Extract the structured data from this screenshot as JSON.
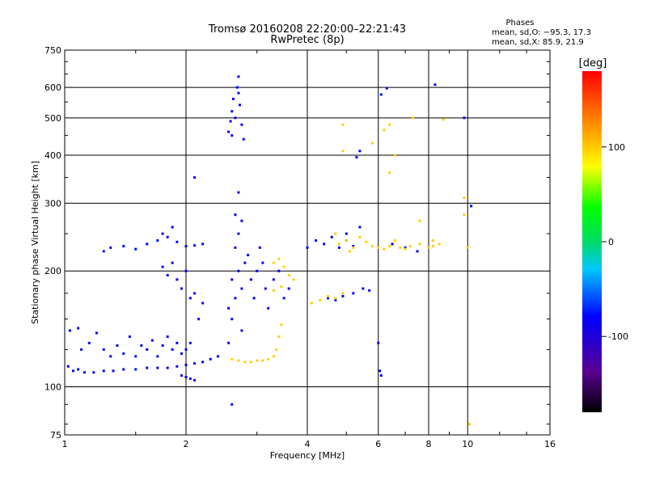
{
  "chart_data": {
    "type": "scatter",
    "title": "Tromsø 20160208 22:20:00–22:21:43",
    "subtitle": "RwPretec (8p)",
    "xlabel": "Frequency [MHz]",
    "ylabel": "Stationary phase Virtual Height [km]",
    "x_scale": "log",
    "y_scale": "log",
    "xlim": [
      1,
      16
    ],
    "ylim": [
      75,
      750
    ],
    "x_ticks": [
      1,
      2,
      4,
      6,
      8,
      10,
      16
    ],
    "x_tick_labels": [
      "1",
      "2",
      "4",
      "6",
      "8",
      "10",
      "16"
    ],
    "y_ticks": [
      75,
      100,
      200,
      300,
      400,
      500,
      600,
      750
    ],
    "y_tick_labels": [
      "75",
      "100",
      "200",
      "300",
      "400",
      "500",
      "600",
      "750"
    ],
    "grid": true,
    "colorbar": {
      "label": "[deg]",
      "range": [
        -180,
        180
      ],
      "ticks": [
        100,
        0,
        -100
      ],
      "tick_labels": [
        "100",
        "0",
        "-100"
      ]
    },
    "annotation": {
      "title": "Phases",
      "line1": "mean, sd,O: −95.3, 17.3",
      "line2": "mean, sd,X:  85.9, 21.9"
    },
    "series": [
      {
        "points": [
          [
            1.02,
            113
          ],
          [
            1.05,
            110
          ],
          [
            1.08,
            111
          ],
          [
            1.12,
            109
          ],
          [
            1.18,
            109
          ],
          [
            1.25,
            110
          ],
          [
            1.32,
            110
          ],
          [
            1.4,
            111
          ],
          [
            1.5,
            111
          ],
          [
            1.6,
            112
          ],
          [
            1.7,
            112
          ],
          [
            1.8,
            112
          ],
          [
            1.9,
            113
          ],
          [
            2.0,
            114
          ],
          [
            2.1,
            115
          ],
          [
            2.2,
            116
          ],
          [
            2.3,
            118
          ],
          [
            2.4,
            120
          ],
          [
            1.03,
            140
          ],
          [
            1.08,
            142
          ],
          [
            1.1,
            125
          ],
          [
            1.15,
            130
          ],
          [
            1.2,
            138
          ],
          [
            1.25,
            125
          ],
          [
            1.3,
            120
          ],
          [
            1.35,
            128
          ],
          [
            1.4,
            122
          ],
          [
            1.45,
            135
          ],
          [
            1.5,
            120
          ],
          [
            1.55,
            128
          ],
          [
            1.6,
            125
          ],
          [
            1.65,
            132
          ],
          [
            1.7,
            120
          ],
          [
            1.75,
            128
          ],
          [
            1.8,
            135
          ],
          [
            1.85,
            125
          ],
          [
            1.9,
            130
          ],
          [
            1.95,
            122
          ],
          [
            2.0,
            125
          ],
          [
            2.05,
            130
          ],
          [
            1.25,
            225
          ],
          [
            1.3,
            230
          ],
          [
            1.4,
            232
          ],
          [
            1.5,
            228
          ],
          [
            1.6,
            235
          ],
          [
            1.7,
            240
          ],
          [
            1.75,
            250
          ],
          [
            1.8,
            245
          ],
          [
            1.85,
            260
          ],
          [
            1.9,
            238
          ],
          [
            2.0,
            232
          ],
          [
            2.1,
            233
          ],
          [
            2.2,
            235
          ],
          [
            1.75,
            205
          ],
          [
            1.8,
            195
          ],
          [
            1.85,
            210
          ],
          [
            1.9,
            190
          ],
          [
            1.95,
            180
          ],
          [
            2.0,
            200
          ],
          [
            2.05,
            170
          ],
          [
            2.1,
            175
          ],
          [
            2.15,
            150
          ],
          [
            2.2,
            165
          ],
          [
            2.0,
            106
          ],
          [
            2.05,
            105
          ],
          [
            2.1,
            104
          ],
          [
            1.95,
            107
          ],
          [
            2.1,
            350
          ],
          [
            2.55,
            130
          ],
          [
            2.6,
            150
          ],
          [
            2.65,
            170
          ],
          [
            2.7,
            200
          ],
          [
            2.75,
            180
          ],
          [
            2.8,
            210
          ],
          [
            2.65,
            230
          ],
          [
            2.7,
            250
          ],
          [
            2.6,
            190
          ],
          [
            2.55,
            160
          ],
          [
            2.75,
            140
          ],
          [
            2.85,
            220
          ],
          [
            2.9,
            190
          ],
          [
            2.95,
            170
          ],
          [
            3.0,
            200
          ],
          [
            3.05,
            230
          ],
          [
            3.1,
            210
          ],
          [
            3.15,
            180
          ],
          [
            3.2,
            160
          ],
          [
            3.3,
            190
          ],
          [
            3.4,
            200
          ],
          [
            3.5,
            170
          ],
          [
            3.6,
            180
          ],
          [
            2.55,
            460
          ],
          [
            2.6,
            520
          ],
          [
            2.62,
            560
          ],
          [
            2.65,
            500
          ],
          [
            2.68,
            600
          ],
          [
            2.7,
            640
          ],
          [
            2.72,
            540
          ],
          [
            2.75,
            480
          ],
          [
            2.78,
            440
          ],
          [
            2.7,
            580
          ],
          [
            2.6,
            450
          ],
          [
            2.58,
            490
          ],
          [
            2.7,
            320
          ],
          [
            2.65,
            280
          ],
          [
            2.75,
            270
          ],
          [
            2.6,
            90
          ],
          [
            4.0,
            230
          ],
          [
            4.2,
            240
          ],
          [
            4.4,
            235
          ],
          [
            4.6,
            245
          ],
          [
            4.8,
            230
          ],
          [
            5.0,
            240
          ],
          [
            5.2,
            232
          ],
          [
            5.4,
            260
          ],
          [
            4.5,
            170
          ],
          [
            4.7,
            168
          ],
          [
            4.9,
            172
          ],
          [
            5.2,
            175
          ],
          [
            5.5,
            180
          ],
          [
            5.7,
            178
          ],
          [
            5.3,
            395
          ],
          [
            5.4,
            410
          ],
          [
            6.1,
            575
          ],
          [
            6.3,
            597
          ],
          [
            8.3,
            610
          ],
          [
            9.8,
            500
          ],
          [
            10.2,
            295
          ],
          [
            6.0,
            130
          ],
          [
            6.05,
            110
          ],
          [
            6.1,
            107
          ],
          [
            5.0,
            250
          ],
          [
            6.5,
            235
          ],
          [
            7.0,
            230
          ],
          [
            7.5,
            225
          ]
        ]
      },
      {
        "points": [
          [
            2.6,
            118
          ],
          [
            2.7,
            117
          ],
          [
            2.8,
            116
          ],
          [
            2.9,
            116
          ],
          [
            3.0,
            117
          ],
          [
            3.1,
            117
          ],
          [
            3.2,
            118
          ],
          [
            3.3,
            120
          ],
          [
            3.35,
            125
          ],
          [
            3.4,
            135
          ],
          [
            3.45,
            145
          ],
          [
            3.3,
            210
          ],
          [
            3.4,
            215
          ],
          [
            3.5,
            205
          ],
          [
            3.6,
            195
          ],
          [
            3.7,
            190
          ],
          [
            3.3,
            178
          ],
          [
            3.45,
            182
          ],
          [
            4.1,
            165
          ],
          [
            4.3,
            168
          ],
          [
            4.5,
            172
          ],
          [
            4.7,
            170
          ],
          [
            4.9,
            175
          ],
          [
            4.8,
            235
          ],
          [
            5.0,
            240
          ],
          [
            5.2,
            230
          ],
          [
            5.4,
            245
          ],
          [
            5.6,
            238
          ],
          [
            5.8,
            232
          ],
          [
            6.0,
            230
          ],
          [
            6.2,
            228
          ],
          [
            6.4,
            232
          ],
          [
            6.6,
            240
          ],
          [
            6.8,
            230
          ],
          [
            7.0,
            228
          ],
          [
            7.2,
            232
          ],
          [
            7.6,
            235
          ],
          [
            8.0,
            230
          ],
          [
            8.2,
            232
          ],
          [
            8.5,
            235
          ],
          [
            4.9,
            480
          ],
          [
            4.9,
            410
          ],
          [
            6.2,
            465
          ],
          [
            6.4,
            480
          ],
          [
            7.3,
            500
          ],
          [
            8.7,
            495
          ],
          [
            5.8,
            430
          ],
          [
            6.4,
            360
          ],
          [
            6.6,
            400
          ],
          [
            7.6,
            270
          ],
          [
            8.2,
            240
          ],
          [
            9.8,
            310
          ],
          [
            9.8,
            280
          ],
          [
            10.0,
            230
          ],
          [
            10.1,
            80
          ],
          [
            4.7,
            250
          ],
          [
            5.1,
            225
          ]
        ]
      }
    ]
  }
}
